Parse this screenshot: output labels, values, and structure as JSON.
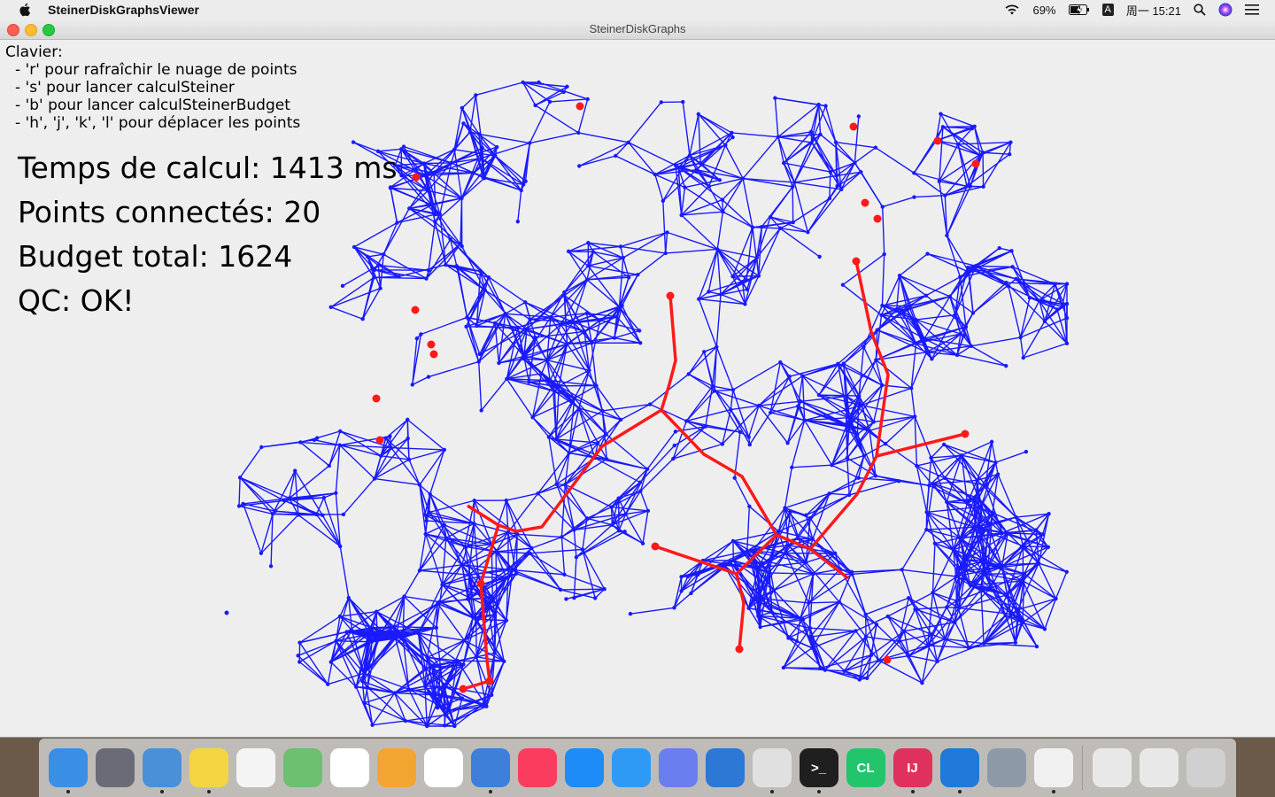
{
  "menubar": {
    "app_name": "SteinerDiskGraphsViewer",
    "battery": "69%",
    "input_method": "A",
    "clock": "周一 15:21"
  },
  "window": {
    "title": "SteinerDiskGraphs"
  },
  "help": {
    "heading": "Clavier:",
    "items": [
      "- 'r' pour rafraîchir le nuage de points",
      "- 's' pour lancer calculSteiner",
      "- 'b' pour lancer calculSteinerBudget",
      "- 'h', 'j', 'k', 'l' pour déplacer les points"
    ]
  },
  "stats": {
    "time": "Temps de calcul: 1413 ms",
    "connected": "Points connectés: 20",
    "budget": "Budget total: 1624",
    "qc": "QC: OK!"
  },
  "colors": {
    "graph_edges": "#1a1aff",
    "steiner_tree": "#ff1a1a",
    "background": "#eeeeee"
  },
  "dock": {
    "apps": [
      {
        "name": "finder-icon",
        "color": "#3a8ee6",
        "label": ""
      },
      {
        "name": "launchpad-icon",
        "color": "#6b6b78",
        "label": ""
      },
      {
        "name": "mail-icon",
        "color": "#4a90d9",
        "label": ""
      },
      {
        "name": "notes-icon",
        "color": "#f5d442",
        "label": ""
      },
      {
        "name": "reminders-icon",
        "color": "#f4f4f4",
        "label": ""
      },
      {
        "name": "maps-icon",
        "color": "#6cc070",
        "label": ""
      },
      {
        "name": "photos-icon",
        "color": "#ffffff",
        "label": ""
      },
      {
        "name": "pages-icon",
        "color": "#f2a530",
        "label": ""
      },
      {
        "name": "numbers-icon",
        "color": "#ffffff",
        "label": ""
      },
      {
        "name": "keynote-icon",
        "color": "#3d7fd9",
        "label": ""
      },
      {
        "name": "music-icon",
        "color": "#fa3d5f",
        "label": ""
      },
      {
        "name": "app-store-icon",
        "color": "#1d8cf8",
        "label": ""
      },
      {
        "name": "safari-icon",
        "color": "#2e9af5",
        "label": ""
      },
      {
        "name": "discord-icon",
        "color": "#6b7ef0",
        "label": ""
      },
      {
        "name": "quicktime-icon",
        "color": "#2c78d4",
        "label": ""
      },
      {
        "name": "chrome-icon",
        "color": "#e0e0e0",
        "label": ""
      },
      {
        "name": "terminal-icon",
        "color": "#1f1f1f",
        "label": ">_"
      },
      {
        "name": "clion-icon",
        "color": "#22c46c",
        "label": "CL"
      },
      {
        "name": "intellij-icon",
        "color": "#e0315c",
        "label": "IJ"
      },
      {
        "name": "vscode-icon",
        "color": "#1e7ad6",
        "label": ""
      },
      {
        "name": "preview-icon",
        "color": "#8c9aa8",
        "label": ""
      },
      {
        "name": "java-icon",
        "color": "#f0f0f0",
        "label": ""
      }
    ],
    "right": [
      {
        "name": "downloads-stack-icon",
        "color": "#e8e8e8"
      },
      {
        "name": "documents-stack-icon",
        "color": "#e8e8e8"
      },
      {
        "name": "trash-icon",
        "color": "#d0d0d0"
      }
    ]
  }
}
